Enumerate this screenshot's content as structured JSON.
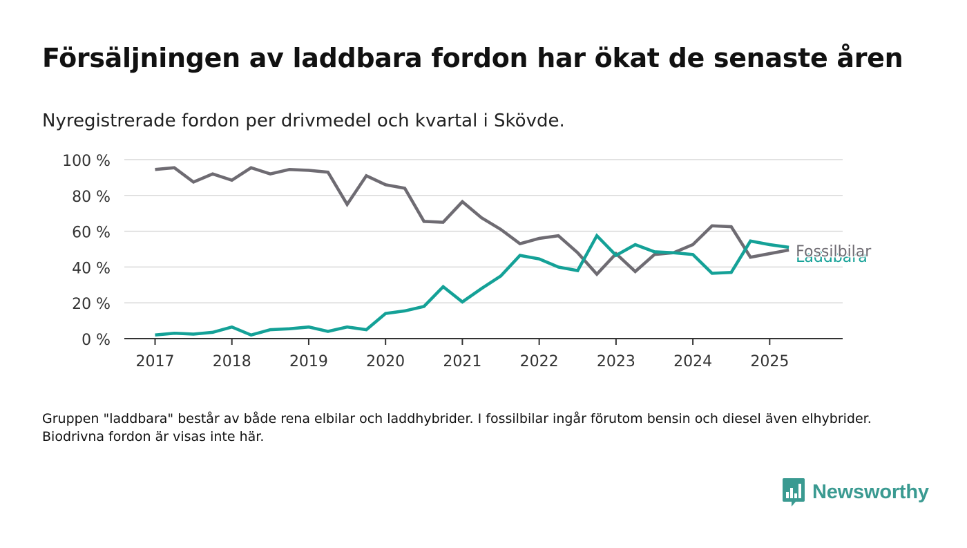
{
  "title": "Försäljningen av laddbara fordon har ökat de senaste åren",
  "subtitle": "Nyregistrerade fordon per drivmedel och kvartal i Skövde.",
  "note": "Gruppen \"laddbara\" består av både rena elbilar och laddhybrider. I fossilbilar ingår förutom bensin och diesel även elhybrider. Biodrivna fordon är visas inte här.",
  "brand": {
    "name": "Newsworthy"
  },
  "colors": {
    "fossil": "#6e6b72",
    "laddbara": "#14a197",
    "grid": "#d9d9d9",
    "axis": "#333333",
    "brand": "#3a9a91"
  },
  "chart_data": {
    "type": "line",
    "x_start": 2017.0,
    "x_step": 0.25,
    "x_ticks": [
      {
        "value": 2017,
        "label": "2017"
      },
      {
        "value": 2018,
        "label": "2018"
      },
      {
        "value": 2019,
        "label": "2019"
      },
      {
        "value": 2020,
        "label": "2020"
      },
      {
        "value": 2021,
        "label": "2021"
      },
      {
        "value": 2022,
        "label": "2022"
      },
      {
        "value": 2023,
        "label": "2023"
      },
      {
        "value": 2024,
        "label": "2024"
      },
      {
        "value": 2025,
        "label": "2025"
      }
    ],
    "xlim": [
      2016.6,
      2025.95
    ],
    "y_ticks": [
      {
        "value": 0,
        "label": "0 %"
      },
      {
        "value": 20,
        "label": "20 %"
      },
      {
        "value": 40,
        "label": "40 %"
      },
      {
        "value": 60,
        "label": "60 %"
      },
      {
        "value": 80,
        "label": "80 %"
      },
      {
        "value": 100,
        "label": "100 %"
      }
    ],
    "ylim": [
      0,
      100
    ],
    "grid": true,
    "series": [
      {
        "name": "Fossilbilar",
        "color_key": "fossil",
        "values": [
          94.5,
          95.5,
          87.5,
          92,
          88.5,
          95.5,
          92,
          94.5,
          94,
          93,
          75,
          91,
          86,
          84,
          65.5,
          65,
          76.5,
          67.5,
          61,
          53,
          56,
          57.5,
          48,
          36,
          47.5,
          37.5,
          47,
          48,
          52.5,
          63,
          62.5,
          45.5,
          47.5,
          49.5
        ]
      },
      {
        "name": "Laddbara",
        "color_key": "laddbara",
        "values": [
          2,
          3,
          2.5,
          3.5,
          6.5,
          2,
          5,
          5.5,
          6.5,
          4,
          6.5,
          5,
          14,
          15.5,
          18,
          29,
          20.5,
          28,
          35,
          46.5,
          44.5,
          40,
          38,
          57.5,
          46.5,
          52.5,
          48.5,
          48,
          47,
          36.5,
          37,
          54.5,
          52.5,
          51
        ]
      }
    ]
  }
}
